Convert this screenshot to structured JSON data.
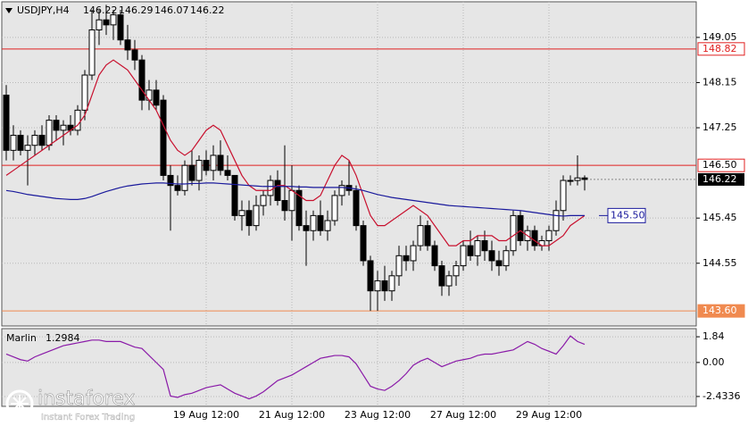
{
  "header": {
    "symbol": "USDJPY,H4",
    "ohlc": [
      146.22,
      146.29,
      146.07,
      146.22
    ]
  },
  "watermark": {
    "brand": "instaforex",
    "slogan": "Instant Forex Trading"
  },
  "chart_data": [
    {
      "type": "candlestick",
      "categories": [
        null,
        null,
        null,
        null,
        null,
        null,
        null,
        null,
        null,
        null,
        null,
        null,
        null,
        null,
        null,
        null,
        null,
        null,
        null,
        null,
        null,
        null,
        null,
        null,
        null,
        null,
        null,
        null,
        "19 Aug 12:00",
        null,
        null,
        null,
        null,
        null,
        null,
        null,
        null,
        null,
        null,
        null,
        "21 Aug 12:00",
        null,
        null,
        null,
        null,
        null,
        null,
        null,
        null,
        null,
        null,
        null,
        "23 Aug 12:00",
        null,
        null,
        null,
        null,
        null,
        null,
        null,
        null,
        null,
        null,
        null,
        "27 Aug 12:00",
        null,
        null,
        null,
        null,
        null,
        null,
        null,
        null,
        null,
        null,
        null,
        "29 Aug 12:00",
        null,
        null,
        null,
        null,
        null
      ],
      "open": [
        147.9,
        146.8,
        147.1,
        146.8,
        146.9,
        147.1,
        146.9,
        147.4,
        147.2,
        147.3,
        147.2,
        147.6,
        148.3,
        149.2,
        149.4,
        149.3,
        149.5,
        149.0,
        148.8,
        148.6,
        147.8,
        148.0,
        147.8,
        146.3,
        146.1,
        146.0,
        146.5,
        146.2,
        146.6,
        146.4,
        146.7,
        146.4,
        146.3,
        145.5,
        145.6,
        145.3,
        145.7,
        145.9,
        146.2,
        145.8,
        145.6,
        146.0,
        145.3,
        145.2,
        145.5,
        145.2,
        145.4,
        145.9,
        146.1,
        146.0,
        145.3,
        144.6,
        144.0,
        144.2,
        144.0,
        144.3,
        144.7,
        144.6,
        144.9,
        145.3,
        144.9,
        144.5,
        144.1,
        144.3,
        144.5,
        144.9,
        144.7,
        145.0,
        144.8,
        144.6,
        144.5,
        144.8,
        145.5,
        145.0,
        145.2,
        144.9,
        145.0,
        145.2,
        145.6,
        146.2,
        146.2,
        146.25
      ],
      "high": [
        148.1,
        147.3,
        147.2,
        147.1,
        147.2,
        147.3,
        147.5,
        147.5,
        147.4,
        147.5,
        147.7,
        148.4,
        149.6,
        149.6,
        149.7,
        149.6,
        149.6,
        149.3,
        149.0,
        148.7,
        148.2,
        148.2,
        147.9,
        146.5,
        146.3,
        146.6,
        146.8,
        146.7,
        146.8,
        146.9,
        147.0,
        146.7,
        146.3,
        145.8,
        145.8,
        145.9,
        146.0,
        146.3,
        146.4,
        146.9,
        146.5,
        146.1,
        145.6,
        145.6,
        145.8,
        145.6,
        146.0,
        146.2,
        146.6,
        146.1,
        145.4,
        144.7,
        144.4,
        144.5,
        144.4,
        144.9,
        144.9,
        145.0,
        145.5,
        145.4,
        145.0,
        144.6,
        144.4,
        144.6,
        145.0,
        145.2,
        145.1,
        145.2,
        145.0,
        144.8,
        144.9,
        145.6,
        145.6,
        145.3,
        145.3,
        145.1,
        145.3,
        145.8,
        146.3,
        146.3,
        146.7,
        146.3
      ],
      "low": [
        146.6,
        146.6,
        146.7,
        146.1,
        146.7,
        146.8,
        146.8,
        147.0,
        146.9,
        147.1,
        147.1,
        147.4,
        148.2,
        148.9,
        149.1,
        149.0,
        148.9,
        148.6,
        148.4,
        147.6,
        147.6,
        147.6,
        146.2,
        145.2,
        145.9,
        145.9,
        146.1,
        146.0,
        146.3,
        146.2,
        146.3,
        146.2,
        145.4,
        145.2,
        145.1,
        145.2,
        145.5,
        145.7,
        145.7,
        145.4,
        145.0,
        145.2,
        144.5,
        145.0,
        145.1,
        145.0,
        145.3,
        145.7,
        145.9,
        145.2,
        144.5,
        143.6,
        143.6,
        143.8,
        143.8,
        144.1,
        144.4,
        144.4,
        144.8,
        144.8,
        144.4,
        143.9,
        143.9,
        144.1,
        144.4,
        144.6,
        144.5,
        144.6,
        144.4,
        144.3,
        144.4,
        144.7,
        144.9,
        144.8,
        144.8,
        144.8,
        144.8,
        145.1,
        145.4,
        146.1,
        146.1,
        146.0
      ],
      "close": [
        146.8,
        147.1,
        146.8,
        146.9,
        147.1,
        146.9,
        147.4,
        147.2,
        147.3,
        147.2,
        147.6,
        148.3,
        149.2,
        149.4,
        149.3,
        149.5,
        149.0,
        148.8,
        148.6,
        147.8,
        148.0,
        147.7,
        146.3,
        146.1,
        146.0,
        146.5,
        146.2,
        146.6,
        146.4,
        146.7,
        146.4,
        146.3,
        145.5,
        145.6,
        145.3,
        145.7,
        145.9,
        146.2,
        145.8,
        145.6,
        146.0,
        145.3,
        145.2,
        145.5,
        145.2,
        145.4,
        145.9,
        146.1,
        146.0,
        145.3,
        144.6,
        144.0,
        144.2,
        144.0,
        144.3,
        144.7,
        144.6,
        144.9,
        145.3,
        144.9,
        144.5,
        144.1,
        144.3,
        144.5,
        144.9,
        144.7,
        145.0,
        144.8,
        144.6,
        144.5,
        144.8,
        145.5,
        145.0,
        145.2,
        144.9,
        145.0,
        145.2,
        145.6,
        146.2,
        146.2,
        146.25,
        146.22
      ],
      "series": [
        {
          "color": "#c8102e",
          "values": [
            146.3,
            146.4,
            146.5,
            146.6,
            146.7,
            146.8,
            146.9,
            147.0,
            147.1,
            147.2,
            147.3,
            147.5,
            147.9,
            148.3,
            148.5,
            148.6,
            148.5,
            148.4,
            148.2,
            148.0,
            147.8,
            147.6,
            147.3,
            147.0,
            146.8,
            146.7,
            146.8,
            147.0,
            147.2,
            147.3,
            147.2,
            146.9,
            146.6,
            146.3,
            146.1,
            146.0,
            146.0,
            146.0,
            146.1,
            146.1,
            146.0,
            145.9,
            145.8,
            145.8,
            145.9,
            146.2,
            146.5,
            146.7,
            146.6,
            146.3,
            145.9,
            145.5,
            145.3,
            145.3,
            145.4,
            145.5,
            145.6,
            145.7,
            145.6,
            145.5,
            145.3,
            145.1,
            144.9,
            144.9,
            145.0,
            145.0,
            145.1,
            145.1,
            145.1,
            145.0,
            145.0,
            145.1,
            145.2,
            145.1,
            145.0,
            144.9,
            144.9,
            145.0,
            145.1,
            145.3,
            145.4,
            145.5
          ]
        },
        {
          "color": "#1a1a9c",
          "values": [
            146.0,
            145.98,
            145.95,
            145.92,
            145.9,
            145.88,
            145.86,
            145.84,
            145.83,
            145.82,
            145.82,
            145.84,
            145.88,
            145.93,
            145.98,
            146.02,
            146.06,
            146.09,
            146.11,
            146.13,
            146.14,
            146.15,
            146.15,
            146.14,
            146.13,
            146.13,
            146.14,
            146.14,
            146.15,
            146.15,
            146.14,
            146.13,
            146.12,
            146.11,
            146.1,
            146.09,
            146.08,
            146.08,
            146.08,
            146.08,
            146.08,
            146.07,
            146.07,
            146.06,
            146.06,
            146.06,
            146.06,
            146.06,
            146.05,
            146.03,
            146.0,
            145.96,
            145.92,
            145.89,
            145.86,
            145.84,
            145.82,
            145.8,
            145.78,
            145.76,
            145.74,
            145.72,
            145.7,
            145.69,
            145.68,
            145.67,
            145.66,
            145.65,
            145.64,
            145.63,
            145.62,
            145.61,
            145.6,
            145.58,
            145.56,
            145.54,
            145.52,
            145.5,
            145.49,
            145.5,
            145.5,
            145.5
          ]
        }
      ],
      "ma_label": {
        "value": 145.5,
        "label": "145.50"
      },
      "levels": [
        {
          "value": 148.82,
          "label": "148.82",
          "color": "#e02020"
        },
        {
          "value": 146.5,
          "label": "146.50",
          "color": "#e02020"
        },
        {
          "value": 143.6,
          "label": "143.60",
          "color": "#f08a50"
        }
      ],
      "last_price": 146.22,
      "ylim": [
        143.3,
        149.76
      ],
      "yticks": [
        149.05,
        148.15,
        147.25,
        145.45,
        144.55
      ],
      "grid": true
    },
    {
      "type": "line",
      "indicator": "Marlin",
      "indicator_value": 1.2984,
      "color": "#8a1aa8",
      "values": [
        0.6,
        0.4,
        0.2,
        0.1,
        0.4,
        0.6,
        0.8,
        1.0,
        1.2,
        1.3,
        1.4,
        1.5,
        1.6,
        1.6,
        1.5,
        1.5,
        1.5,
        1.3,
        1.1,
        1.0,
        0.5,
        0.0,
        -0.5,
        -2.4,
        -2.5,
        -2.3,
        -2.2,
        -2.0,
        -1.8,
        -1.7,
        -1.6,
        -1.9,
        -2.2,
        -2.4,
        -2.6,
        -2.4,
        -2.1,
        -1.7,
        -1.3,
        -1.1,
        -0.9,
        -0.6,
        -0.3,
        0.0,
        0.3,
        0.4,
        0.5,
        0.5,
        0.4,
        -0.1,
        -0.9,
        -1.7,
        -1.9,
        -2.0,
        -1.7,
        -1.3,
        -0.8,
        -0.2,
        0.1,
        0.3,
        0.0,
        -0.3,
        -0.1,
        0.1,
        0.2,
        0.3,
        0.5,
        0.6,
        0.6,
        0.7,
        0.8,
        0.9,
        1.2,
        1.5,
        1.3,
        1.0,
        0.8,
        0.6,
        1.2,
        1.9,
        1.5,
        1.3
      ],
      "ylim": [
        -3.14,
        2.42
      ],
      "yticks": [
        1.84,
        {
          "value": 0,
          "label": "0.00"
        },
        -2.4336
      ],
      "grid": true
    }
  ]
}
